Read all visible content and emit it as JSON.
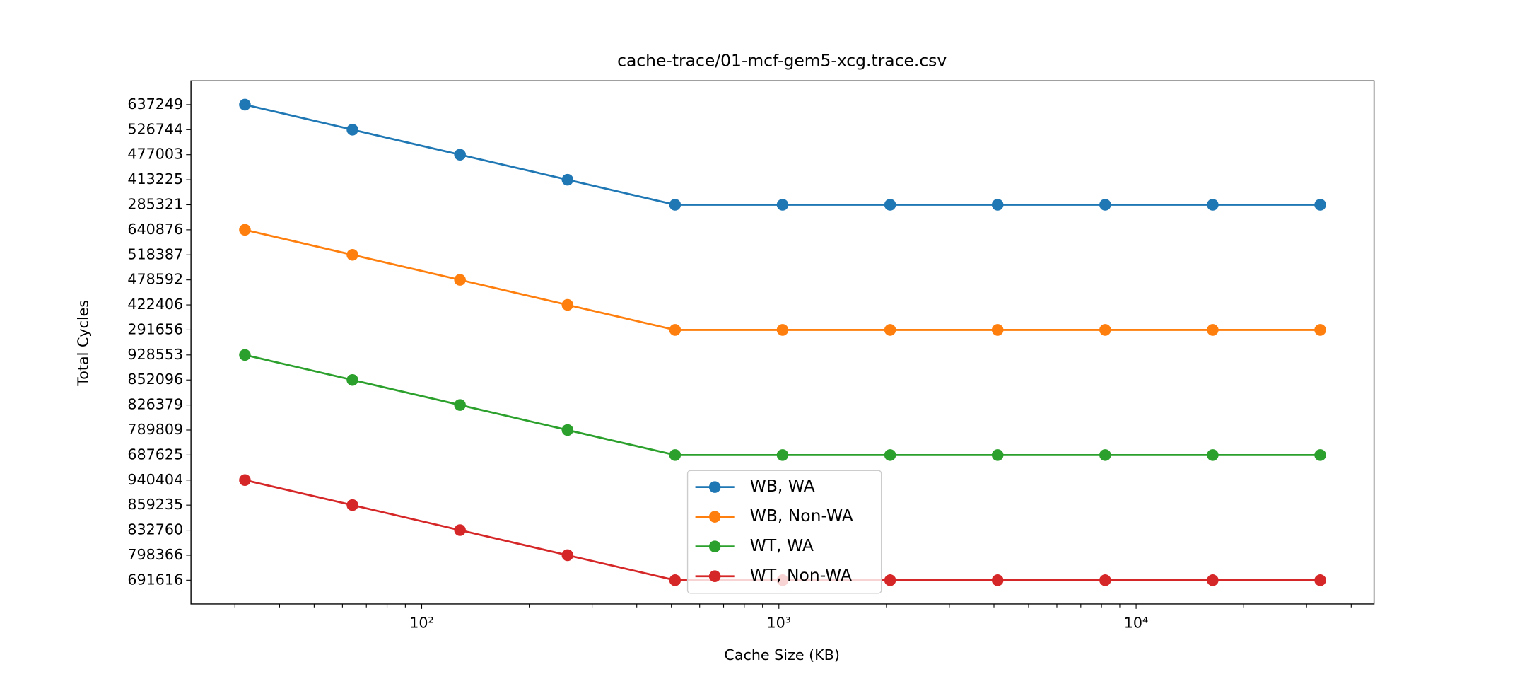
{
  "chart_data": {
    "type": "line",
    "title": "cache-trace/01-mcf-gem5-xcg.trace.csv",
    "xlabel": "Cache Size (KB)",
    "ylabel": "Total Cycles",
    "xscale": "log",
    "x": [
      32,
      64,
      128,
      256,
      512,
      1024,
      2048,
      4096,
      8192,
      16384,
      32768
    ],
    "xlim": [
      22.6,
      46340
    ],
    "xticks": [
      {
        "value": 100,
        "label": "10²"
      },
      {
        "value": 1000,
        "label": "10³"
      },
      {
        "value": 10000,
        "label": "10⁴"
      }
    ],
    "ycategories": [
      691616,
      798366,
      832760,
      859235,
      940404,
      687625,
      789809,
      826379,
      852096,
      928553,
      291656,
      422406,
      478592,
      518387,
      640876,
      285321,
      413225,
      477003,
      526744,
      637249
    ],
    "ylim": [
      -0.95,
      19.95
    ],
    "legend": "lower center",
    "series": [
      {
        "name": "WB, WA",
        "color": "#1f77b4",
        "values": [
          637249,
          526744,
          477003,
          413225,
          285321,
          285321,
          285321,
          285321,
          285321,
          285321,
          285321
        ]
      },
      {
        "name": "WB, Non-WA",
        "color": "#ff7f0e",
        "values": [
          640876,
          518387,
          478592,
          422406,
          291656,
          291656,
          291656,
          291656,
          291656,
          291656,
          291656
        ]
      },
      {
        "name": "WT, WA",
        "color": "#2ca02c",
        "values": [
          928553,
          852096,
          826379,
          789809,
          687625,
          687625,
          687625,
          687625,
          687625,
          687625,
          687625
        ]
      },
      {
        "name": "WT, Non-WA",
        "color": "#d62728",
        "values": [
          940404,
          859235,
          832760,
          798366,
          691616,
          691616,
          691616,
          691616,
          691616,
          691616,
          691616
        ]
      }
    ]
  }
}
